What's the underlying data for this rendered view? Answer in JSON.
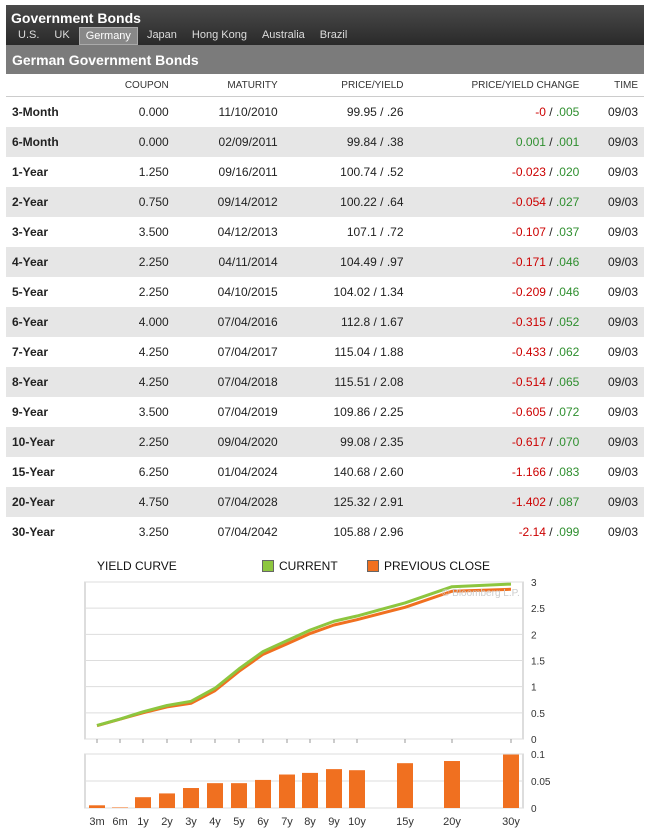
{
  "header": {
    "title": "Government Bonds",
    "tabs": [
      {
        "label": "U.S.",
        "active": false
      },
      {
        "label": "UK",
        "active": false
      },
      {
        "label": "Germany",
        "active": true
      },
      {
        "label": "Japan",
        "active": false
      },
      {
        "label": "Hong Kong",
        "active": false
      },
      {
        "label": "Australia",
        "active": false
      },
      {
        "label": "Brazil",
        "active": false
      }
    ]
  },
  "section_title": "German Government Bonds",
  "table": {
    "headers": [
      "",
      "COUPON",
      "MATURITY",
      "PRICE/YIELD",
      "PRICE/YIELD CHANGE",
      "TIME"
    ],
    "rows": [
      {
        "name": "3-Month",
        "coupon": "0.000",
        "maturity": "11/10/2010",
        "price_yield": "99.95 / .26",
        "change_price": "-0",
        "change_yield": ".005",
        "time": "09/03"
      },
      {
        "name": "6-Month",
        "coupon": "0.000",
        "maturity": "02/09/2011",
        "price_yield": "99.84 / .38",
        "change_price": "0.001",
        "change_yield": ".001",
        "time": "09/03"
      },
      {
        "name": "1-Year",
        "coupon": "1.250",
        "maturity": "09/16/2011",
        "price_yield": "100.74 / .52",
        "change_price": "-0.023",
        "change_yield": ".020",
        "time": "09/03"
      },
      {
        "name": "2-Year",
        "coupon": "0.750",
        "maturity": "09/14/2012",
        "price_yield": "100.22 / .64",
        "change_price": "-0.054",
        "change_yield": ".027",
        "time": "09/03"
      },
      {
        "name": "3-Year",
        "coupon": "3.500",
        "maturity": "04/12/2013",
        "price_yield": "107.1 / .72",
        "change_price": "-0.107",
        "change_yield": ".037",
        "time": "09/03"
      },
      {
        "name": "4-Year",
        "coupon": "2.250",
        "maturity": "04/11/2014",
        "price_yield": "104.49 / .97",
        "change_price": "-0.171",
        "change_yield": ".046",
        "time": "09/03"
      },
      {
        "name": "5-Year",
        "coupon": "2.250",
        "maturity": "04/10/2015",
        "price_yield": "104.02 / 1.34",
        "change_price": "-0.209",
        "change_yield": ".046",
        "time": "09/03"
      },
      {
        "name": "6-Year",
        "coupon": "4.000",
        "maturity": "07/04/2016",
        "price_yield": "112.8 / 1.67",
        "change_price": "-0.315",
        "change_yield": ".052",
        "time": "09/03"
      },
      {
        "name": "7-Year",
        "coupon": "4.250",
        "maturity": "07/04/2017",
        "price_yield": "115.04 / 1.88",
        "change_price": "-0.433",
        "change_yield": ".062",
        "time": "09/03"
      },
      {
        "name": "8-Year",
        "coupon": "4.250",
        "maturity": "07/04/2018",
        "price_yield": "115.51 / 2.08",
        "change_price": "-0.514",
        "change_yield": ".065",
        "time": "09/03"
      },
      {
        "name": "9-Year",
        "coupon": "3.500",
        "maturity": "07/04/2019",
        "price_yield": "109.86 / 2.25",
        "change_price": "-0.605",
        "change_yield": ".072",
        "time": "09/03"
      },
      {
        "name": "10-Year",
        "coupon": "2.250",
        "maturity": "09/04/2020",
        "price_yield": "99.08 / 2.35",
        "change_price": "-0.617",
        "change_yield": ".070",
        "time": "09/03"
      },
      {
        "name": "15-Year",
        "coupon": "6.250",
        "maturity": "01/04/2024",
        "price_yield": "140.68 / 2.60",
        "change_price": "-1.166",
        "change_yield": ".083",
        "time": "09/03"
      },
      {
        "name": "20-Year",
        "coupon": "4.750",
        "maturity": "07/04/2028",
        "price_yield": "125.32 / 2.91",
        "change_price": "-1.402",
        "change_yield": ".087",
        "time": "09/03"
      },
      {
        "name": "30-Year",
        "coupon": "3.250",
        "maturity": "07/04/2042",
        "price_yield": "105.88 / 2.96",
        "change_price": "-2.14",
        "change_yield": ".099",
        "time": "09/03"
      }
    ]
  },
  "chart_data": {
    "type": "line",
    "title": "YIELD CURVE",
    "watermark": "© Bloomberg L.P.",
    "categories": [
      "3m",
      "6m",
      "1y",
      "2y",
      "3y",
      "4y",
      "5y",
      "6y",
      "7y",
      "8y",
      "9y",
      "10y",
      "15y",
      "20y",
      "30y"
    ],
    "series": [
      {
        "name": "CURRENT",
        "color": "#8dc63f",
        "values": [
          0.26,
          0.38,
          0.52,
          0.64,
          0.72,
          0.97,
          1.34,
          1.67,
          1.88,
          2.08,
          2.25,
          2.35,
          2.6,
          2.91,
          2.96
        ]
      },
      {
        "name": "PREVIOUS CLOSE",
        "color": "#f07020",
        "values": [
          0.255,
          0.379,
          0.5,
          0.613,
          0.683,
          0.924,
          1.294,
          1.618,
          1.818,
          2.015,
          2.178,
          2.28,
          2.517,
          2.823,
          2.861
        ]
      }
    ],
    "ylim": [
      0,
      3
    ],
    "yticks": [
      0,
      0.5,
      1,
      1.5,
      2,
      2.5,
      3
    ],
    "bar_chart": {
      "type": "bar",
      "color": "#f07020",
      "values": [
        0.005,
        0.001,
        0.02,
        0.027,
        0.037,
        0.046,
        0.046,
        0.052,
        0.062,
        0.065,
        0.072,
        0.07,
        0.083,
        0.087,
        0.099
      ],
      "ylim": [
        0,
        0.1
      ],
      "yticks": [
        0,
        0.05,
        0.1
      ]
    },
    "grid": true,
    "legend_position": "top"
  }
}
